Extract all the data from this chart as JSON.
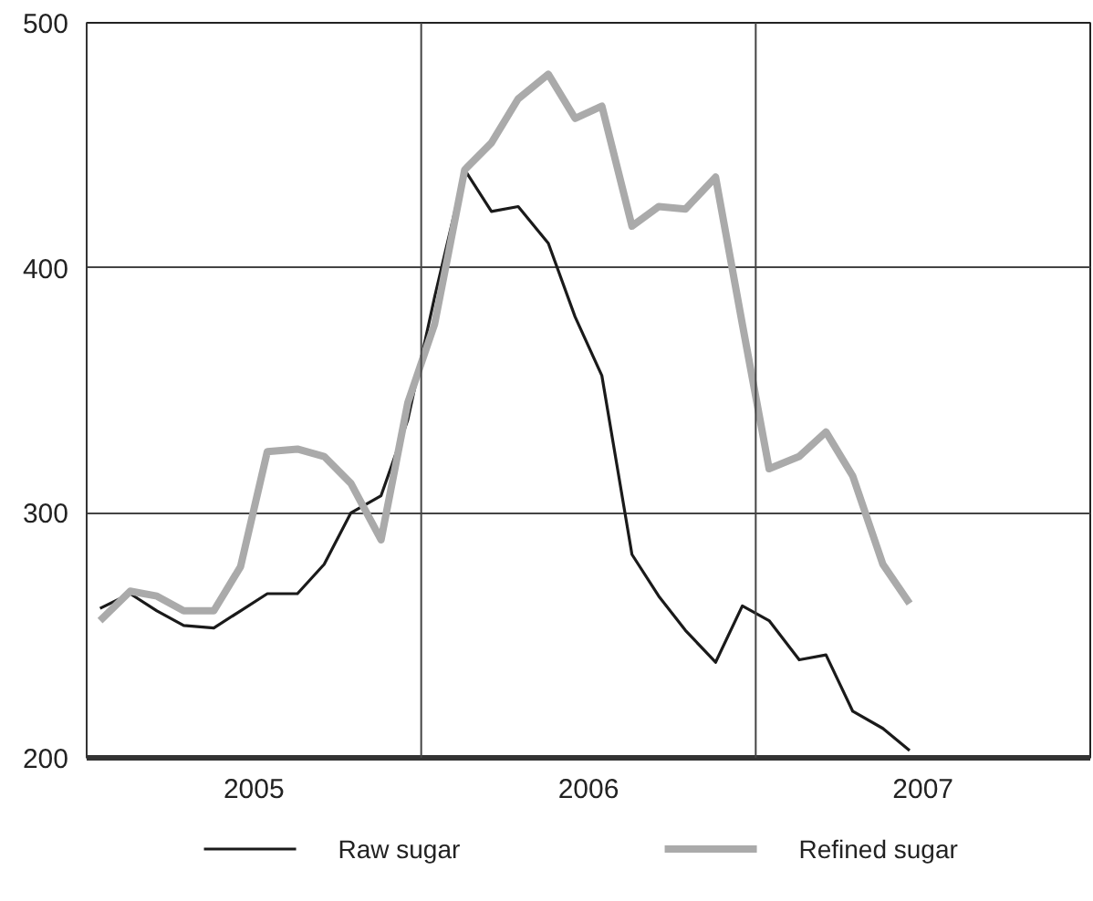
{
  "chart_data": {
    "type": "line",
    "x": [
      2005.04,
      2005.13,
      2005.21,
      2005.29,
      2005.38,
      2005.46,
      2005.54,
      2005.63,
      2005.71,
      2005.79,
      2005.88,
      2005.96,
      2006.04,
      2006.13,
      2006.21,
      2006.29,
      2006.38,
      2006.46,
      2006.54,
      2006.63,
      2006.71,
      2006.79,
      2006.88,
      2006.96,
      2007.04,
      2007.13,
      2007.21,
      2007.29,
      2007.38,
      2007.46
    ],
    "series": [
      {
        "name": "Raw sugar",
        "color": "#1a1a1a",
        "values": [
          261,
          267,
          260,
          254,
          253,
          260,
          267,
          267,
          279,
          300,
          307,
          338,
          388,
          440,
          423,
          425,
          410,
          380,
          356,
          283,
          266,
          252,
          239,
          262,
          256,
          240,
          242,
          219,
          212,
          203
        ]
      },
      {
        "name": "Refined sugar",
        "color": "#aaaaaa",
        "values": [
          256,
          268,
          266,
          260,
          260,
          278,
          325,
          326,
          323,
          312,
          289,
          345,
          377,
          440,
          451,
          469,
          479,
          461,
          466,
          417,
          425,
          424,
          437,
          377,
          318,
          323,
          333,
          315,
          279,
          263
        ]
      }
    ],
    "xlim": [
      2005,
      2008
    ],
    "xticks": [
      {
        "value": 2005.5,
        "label": "2005"
      },
      {
        "value": 2006.5,
        "label": "2006"
      },
      {
        "value": 2007.5,
        "label": "2007"
      }
    ],
    "ylim": [
      200,
      500
    ],
    "yticks": [
      200,
      300,
      400,
      500
    ],
    "ref_lines": [
      {
        "axis": "x",
        "value": 2006
      },
      {
        "axis": "x",
        "value": 2007
      }
    ],
    "grid": "y",
    "legend": "bottom"
  }
}
